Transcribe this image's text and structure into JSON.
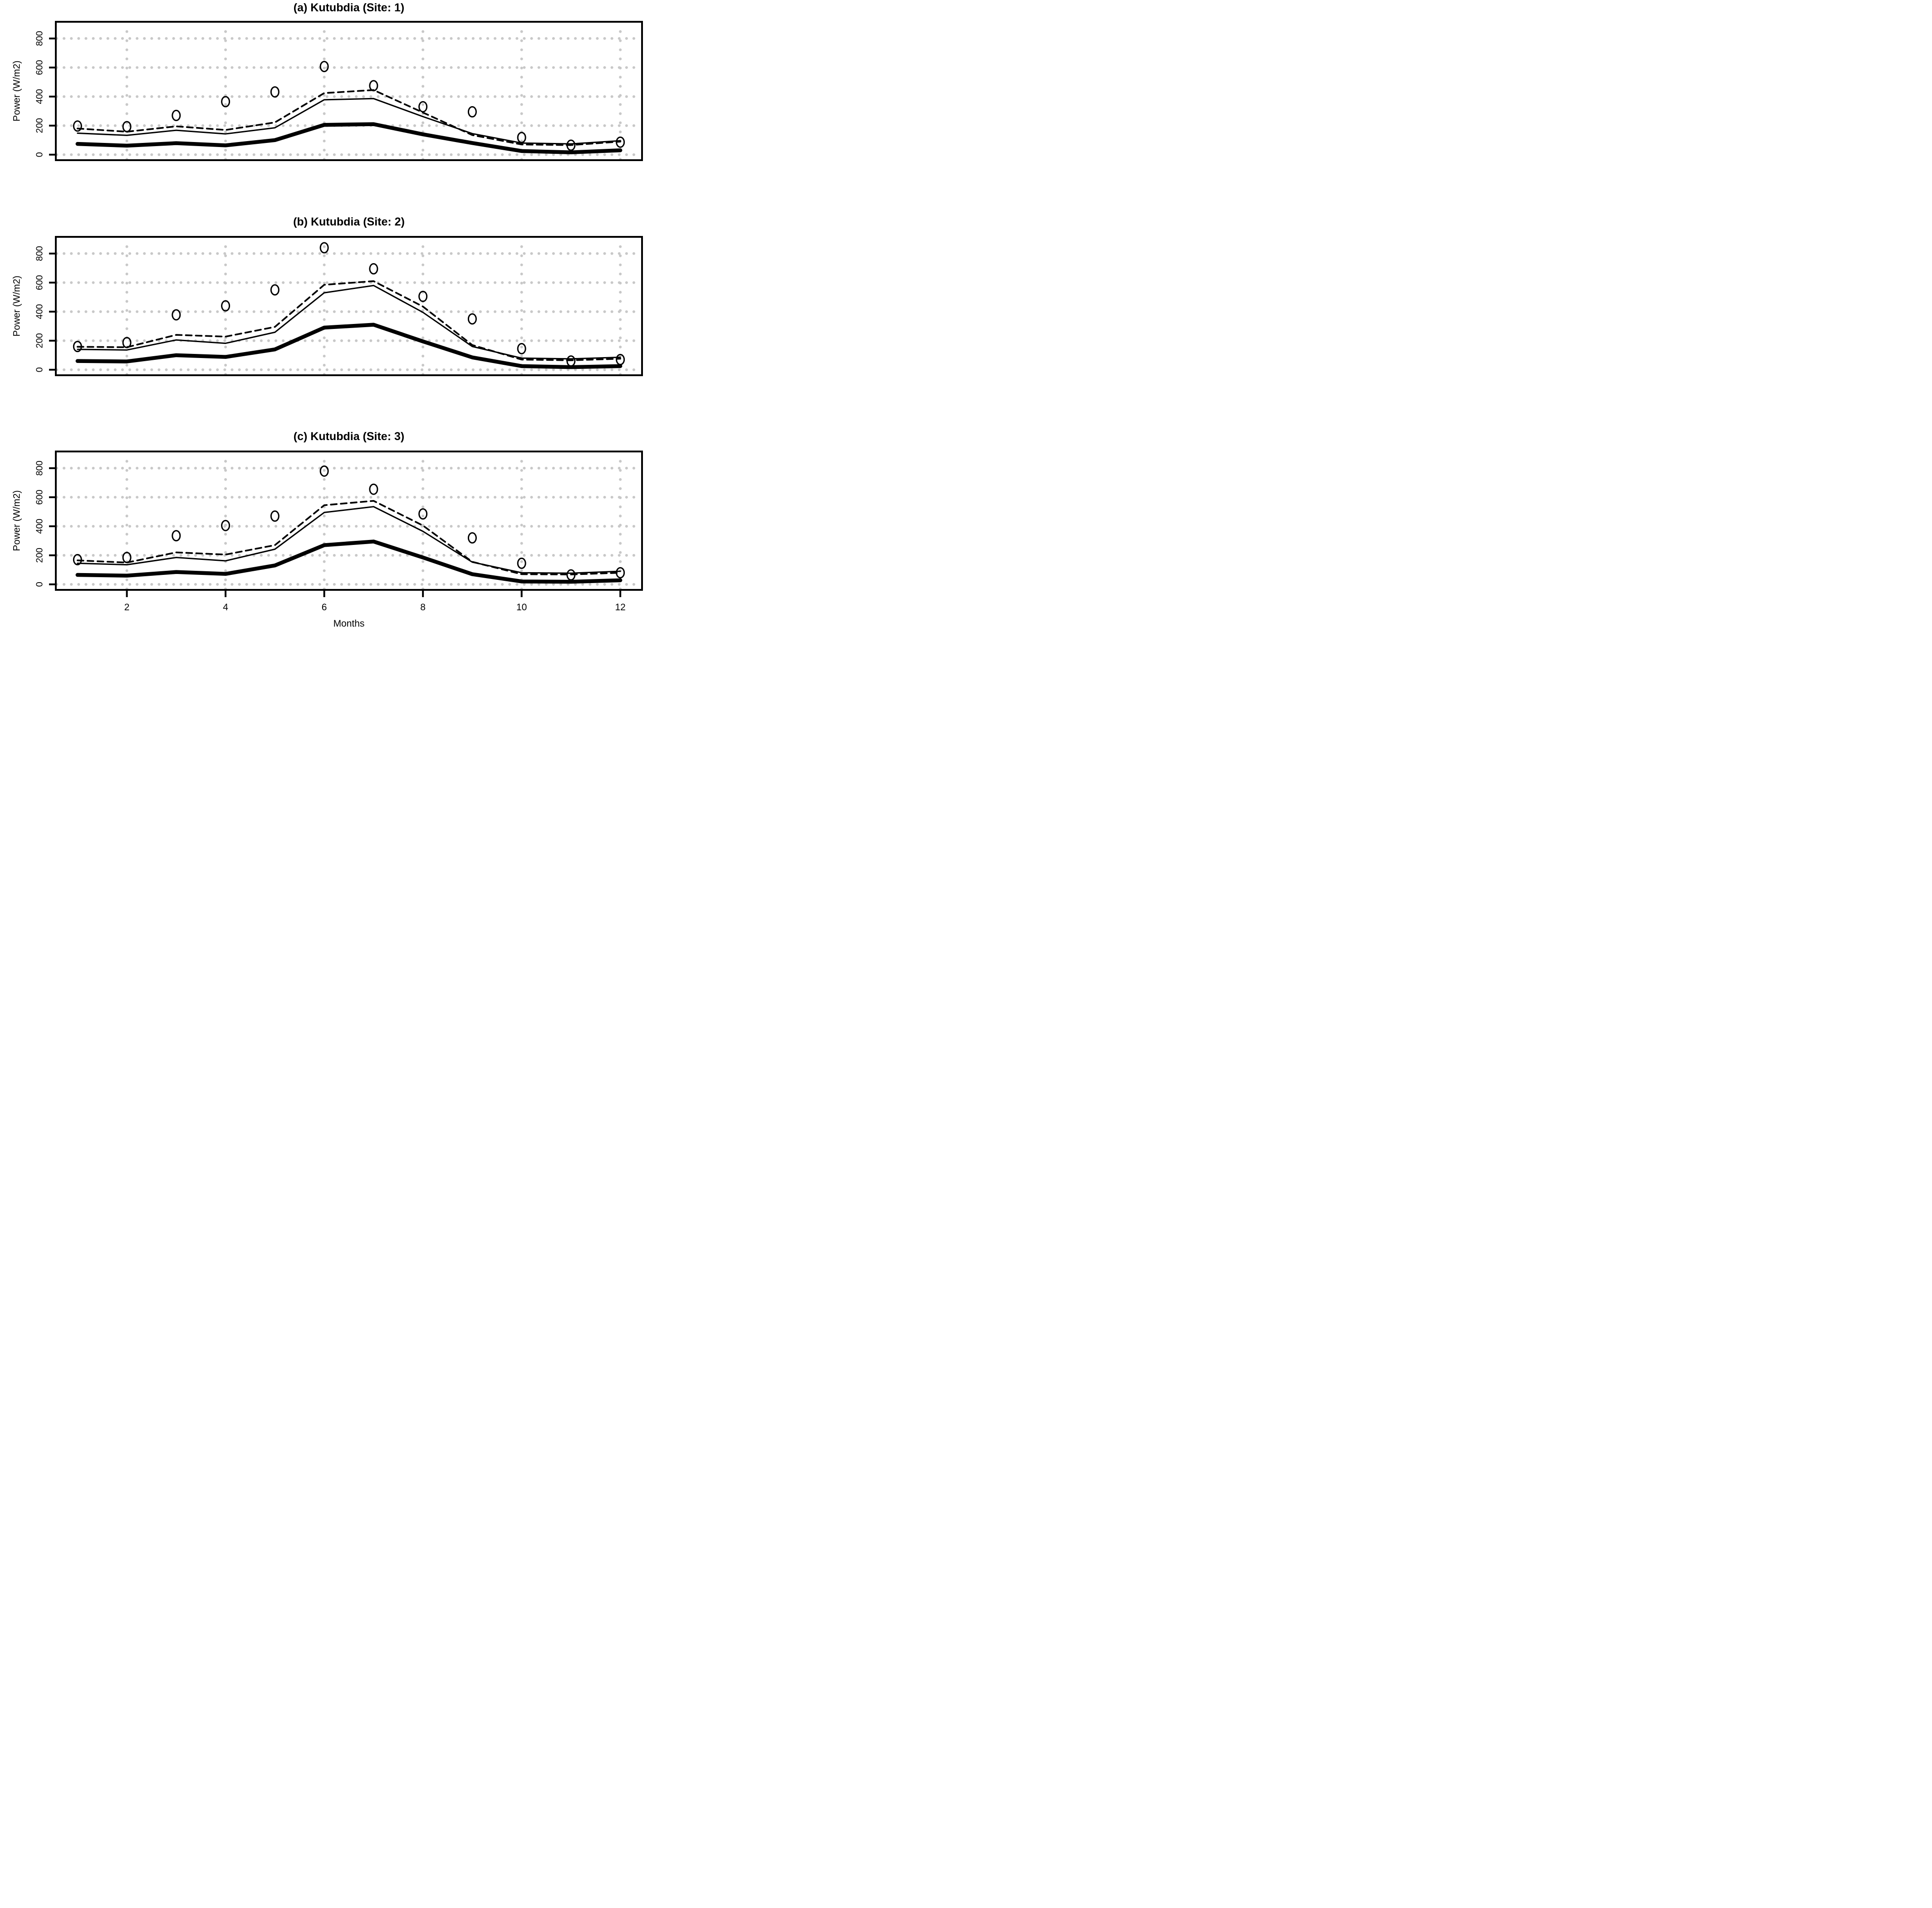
{
  "figure": {
    "xlabel": "Months",
    "ylabel": "Power (W/m2)",
    "x_ticks": [
      2,
      4,
      6,
      8,
      10,
      12
    ],
    "y_ticks": [
      0,
      200,
      400,
      600,
      800
    ],
    "grid_color": "#c8c8c8",
    "line_color": "#000000",
    "background_color": "#ffffff",
    "grid_style": "dotted",
    "legend": "none"
  },
  "chart_data": [
    {
      "type": "line",
      "title": "(a) Kutubdia (Site: 1)",
      "xlabel": "Months",
      "ylabel": "Power (W/m2)",
      "x": [
        1,
        2,
        3,
        4,
        5,
        6,
        7,
        8,
        9,
        10,
        11,
        12
      ],
      "xlim": [
        1,
        12
      ],
      "ylim": [
        0,
        900
      ],
      "series": [
        {
          "name": "observed-points",
          "style": "open-circle-points",
          "values": [
            197,
            193,
            270,
            365,
            432,
            607,
            475,
            330,
            295,
            118,
            65,
            86
          ]
        },
        {
          "name": "upper-dashed-line",
          "style": "dashed",
          "values": [
            180,
            158,
            195,
            170,
            222,
            424,
            445,
            290,
            135,
            70,
            66,
            90
          ]
        },
        {
          "name": "middle-thin-line",
          "style": "solid-thin",
          "values": [
            148,
            133,
            168,
            143,
            185,
            378,
            386,
            262,
            145,
            80,
            74,
            96
          ]
        },
        {
          "name": "lower-thick-line",
          "style": "solid-thick",
          "values": [
            74,
            62,
            79,
            64,
            100,
            205,
            210,
            140,
            80,
            25,
            16,
            30
          ]
        }
      ]
    },
    {
      "type": "line",
      "title": "(b) Kutubdia (Site: 2)",
      "xlabel": "Months",
      "ylabel": "Power (W/m2)",
      "x": [
        1,
        2,
        3,
        4,
        5,
        6,
        7,
        8,
        9,
        10,
        11,
        12
      ],
      "xlim": [
        1,
        12
      ],
      "ylim": [
        0,
        900
      ],
      "series": [
        {
          "name": "observed-points",
          "style": "open-circle-points",
          "values": [
            160,
            187,
            378,
            440,
            550,
            840,
            695,
            505,
            350,
            145,
            60,
            70
          ]
        },
        {
          "name": "upper-dashed-line",
          "style": "dashed",
          "values": [
            158,
            155,
            240,
            228,
            295,
            585,
            610,
            435,
            170,
            70,
            65,
            76
          ]
        },
        {
          "name": "middle-thin-line",
          "style": "solid-thin",
          "values": [
            140,
            136,
            205,
            182,
            258,
            530,
            580,
            395,
            160,
            80,
            75,
            86
          ]
        },
        {
          "name": "lower-thick-line",
          "style": "solid-thick",
          "values": [
            60,
            57,
            100,
            88,
            140,
            290,
            310,
            195,
            85,
            25,
            18,
            25
          ]
        }
      ]
    },
    {
      "type": "line",
      "title": "(c) Kutubdia (Site: 3)",
      "xlabel": "Months",
      "ylabel": "Power (W/m2)",
      "x": [
        1,
        2,
        3,
        4,
        5,
        6,
        7,
        8,
        9,
        10,
        11,
        12
      ],
      "xlim": [
        1,
        12
      ],
      "ylim": [
        0,
        900
      ],
      "series": [
        {
          "name": "observed-points",
          "style": "open-circle-points",
          "values": [
            170,
            185,
            335,
            405,
            470,
            780,
            655,
            485,
            320,
            145,
            65,
            80
          ]
        },
        {
          "name": "upper-dashed-line",
          "style": "dashed",
          "values": [
            165,
            150,
            220,
            205,
            270,
            545,
            575,
            405,
            155,
            70,
            68,
            80
          ]
        },
        {
          "name": "middle-thin-line",
          "style": "solid-thin",
          "values": [
            145,
            135,
            185,
            162,
            242,
            495,
            535,
            365,
            153,
            80,
            77,
            90
          ]
        },
        {
          "name": "lower-thick-line",
          "style": "solid-thick",
          "values": [
            65,
            60,
            85,
            72,
            130,
            270,
            295,
            185,
            70,
            20,
            18,
            28
          ]
        }
      ]
    }
  ]
}
